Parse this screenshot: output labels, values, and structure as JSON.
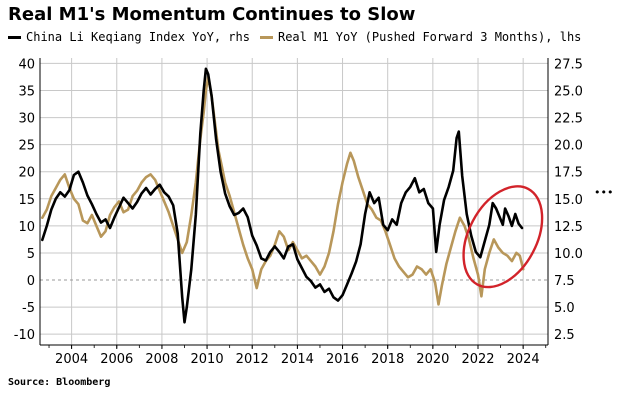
{
  "title": "Real M1's Momentum Continues to Slow",
  "source": "Source: Bloomberg",
  "colors": {
    "black_series": "#000000",
    "gold_series": "#b8975a",
    "highlight": "#d2232a",
    "grid": "#c8c8c8",
    "zero_line": "#9a9a9a"
  },
  "chart_data": {
    "type": "line",
    "legend_placement": "top",
    "grid": true,
    "x_ticks": [
      "2004",
      "2006",
      "2008",
      "2010",
      "2012",
      "2014",
      "2016",
      "2018",
      "2020",
      "2022",
      "2024"
    ],
    "xlim": [
      2002.6,
      2025.1
    ],
    "left_axis": {
      "ylim": [
        -12,
        41
      ],
      "ticks": [
        "40",
        "35",
        "30",
        "25",
        "20",
        "15",
        "10",
        "5",
        "0",
        "-5",
        "-10"
      ],
      "tick_values": [
        40,
        35,
        30,
        25,
        20,
        15,
        10,
        5,
        0,
        -5,
        -10
      ]
    },
    "right_axis": {
      "ylim": [
        1.5,
        28.0
      ],
      "ticks": [
        "27.5",
        "25.0",
        "22.5",
        "20.0",
        "17.5",
        "15.0",
        "12.5",
        "10.0",
        "7.5",
        "5.0",
        "2.5"
      ],
      "tick_values": [
        27.5,
        25.0,
        22.5,
        20.0,
        17.5,
        15.0,
        12.5,
        10.0,
        7.5,
        5.0,
        2.5
      ]
    },
    "annotation": {
      "type": "ellipse",
      "label": "•••",
      "x_range": [
        2021.6,
        2024.6
      ],
      "y_range_left": [
        -2,
        18
      ]
    },
    "series": [
      {
        "name": "China Li Keqiang Index YoY, rhs",
        "axis": "right",
        "color": "#000000",
        "points": [
          [
            2002.7,
            11.2
          ],
          [
            2002.9,
            12.5
          ],
          [
            2003.1,
            14.0
          ],
          [
            2003.3,
            15.0
          ],
          [
            2003.5,
            15.6
          ],
          [
            2003.7,
            15.2
          ],
          [
            2003.9,
            15.8
          ],
          [
            2004.1,
            17.2
          ],
          [
            2004.3,
            17.5
          ],
          [
            2004.5,
            16.5
          ],
          [
            2004.7,
            15.3
          ],
          [
            2004.9,
            14.5
          ],
          [
            2005.1,
            13.6
          ],
          [
            2005.3,
            12.8
          ],
          [
            2005.5,
            13.1
          ],
          [
            2005.7,
            12.3
          ],
          [
            2005.9,
            13.3
          ],
          [
            2006.1,
            14.2
          ],
          [
            2006.3,
            15.1
          ],
          [
            2006.5,
            14.6
          ],
          [
            2006.7,
            14.1
          ],
          [
            2006.9,
            14.7
          ],
          [
            2007.1,
            15.5
          ],
          [
            2007.3,
            16.0
          ],
          [
            2007.5,
            15.4
          ],
          [
            2007.7,
            15.9
          ],
          [
            2007.9,
            16.3
          ],
          [
            2008.1,
            15.6
          ],
          [
            2008.3,
            15.2
          ],
          [
            2008.5,
            14.4
          ],
          [
            2008.7,
            11.8
          ],
          [
            2008.9,
            5.9
          ],
          [
            2009.0,
            3.6
          ],
          [
            2009.1,
            5.0
          ],
          [
            2009.3,
            8.5
          ],
          [
            2009.5,
            13.5
          ],
          [
            2009.7,
            21.0
          ],
          [
            2009.85,
            25.0
          ],
          [
            2009.95,
            27.0
          ],
          [
            2010.05,
            26.5
          ],
          [
            2010.2,
            24.5
          ],
          [
            2010.4,
            20.5
          ],
          [
            2010.6,
            17.5
          ],
          [
            2010.8,
            15.5
          ],
          [
            2011.0,
            14.3
          ],
          [
            2011.2,
            13.5
          ],
          [
            2011.4,
            13.7
          ],
          [
            2011.6,
            14.1
          ],
          [
            2011.8,
            13.3
          ],
          [
            2012.0,
            11.6
          ],
          [
            2012.2,
            10.7
          ],
          [
            2012.4,
            9.5
          ],
          [
            2012.6,
            9.3
          ],
          [
            2012.8,
            10.1
          ],
          [
            2013.0,
            10.6
          ],
          [
            2013.2,
            10.1
          ],
          [
            2013.4,
            9.5
          ],
          [
            2013.6,
            10.6
          ],
          [
            2013.8,
            10.8
          ],
          [
            2014.0,
            9.4
          ],
          [
            2014.2,
            8.6
          ],
          [
            2014.4,
            7.8
          ],
          [
            2014.6,
            7.4
          ],
          [
            2014.8,
            6.8
          ],
          [
            2015.0,
            7.1
          ],
          [
            2015.2,
            6.4
          ],
          [
            2015.4,
            6.7
          ],
          [
            2015.6,
            5.9
          ],
          [
            2015.8,
            5.6
          ],
          [
            2016.0,
            6.1
          ],
          [
            2016.2,
            7.1
          ],
          [
            2016.4,
            8.1
          ],
          [
            2016.6,
            9.2
          ],
          [
            2016.8,
            10.8
          ],
          [
            2017.0,
            13.6
          ],
          [
            2017.2,
            15.6
          ],
          [
            2017.4,
            14.6
          ],
          [
            2017.6,
            15.1
          ],
          [
            2017.8,
            12.6
          ],
          [
            2018.0,
            12.1
          ],
          [
            2018.2,
            13.1
          ],
          [
            2018.4,
            12.6
          ],
          [
            2018.6,
            14.6
          ],
          [
            2018.8,
            15.6
          ],
          [
            2019.0,
            16.1
          ],
          [
            2019.2,
            16.9
          ],
          [
            2019.4,
            15.6
          ],
          [
            2019.6,
            15.9
          ],
          [
            2019.8,
            14.6
          ],
          [
            2020.0,
            14.1
          ],
          [
            2020.15,
            10.1
          ],
          [
            2020.3,
            12.6
          ],
          [
            2020.5,
            14.9
          ],
          [
            2020.7,
            16.1
          ],
          [
            2020.9,
            17.6
          ],
          [
            2021.05,
            20.6
          ],
          [
            2021.15,
            21.2
          ],
          [
            2021.3,
            17.1
          ],
          [
            2021.5,
            13.6
          ],
          [
            2021.7,
            11.6
          ],
          [
            2021.9,
            10.1
          ],
          [
            2022.1,
            9.6
          ],
          [
            2022.3,
            11.1
          ],
          [
            2022.5,
            12.6
          ],
          [
            2022.65,
            14.6
          ],
          [
            2022.8,
            14.1
          ],
          [
            2023.0,
            13.1
          ],
          [
            2023.1,
            12.6
          ],
          [
            2023.2,
            14.1
          ],
          [
            2023.35,
            13.4
          ],
          [
            2023.5,
            12.5
          ],
          [
            2023.65,
            13.6
          ],
          [
            2023.8,
            12.7
          ],
          [
            2023.95,
            12.3
          ]
        ]
      },
      {
        "name": "Real M1 YoY (Pushed Forward 3 Months), lhs",
        "axis": "left",
        "color": "#b8975a",
        "points": [
          [
            2002.7,
            11.5
          ],
          [
            2002.9,
            13.0
          ],
          [
            2003.1,
            15.5
          ],
          [
            2003.3,
            17.0
          ],
          [
            2003.5,
            18.5
          ],
          [
            2003.7,
            19.5
          ],
          [
            2003.9,
            17.0
          ],
          [
            2004.1,
            15.0
          ],
          [
            2004.3,
            14.0
          ],
          [
            2004.5,
            11.0
          ],
          [
            2004.7,
            10.5
          ],
          [
            2004.9,
            12.0
          ],
          [
            2005.1,
            10.0
          ],
          [
            2005.3,
            8.0
          ],
          [
            2005.5,
            9.0
          ],
          [
            2005.7,
            12.0
          ],
          [
            2005.9,
            13.5
          ],
          [
            2006.1,
            14.5
          ],
          [
            2006.3,
            12.5
          ],
          [
            2006.5,
            13.0
          ],
          [
            2006.7,
            15.5
          ],
          [
            2006.9,
            16.5
          ],
          [
            2007.1,
            18.0
          ],
          [
            2007.3,
            19.0
          ],
          [
            2007.5,
            19.5
          ],
          [
            2007.7,
            18.5
          ],
          [
            2007.9,
            16.5
          ],
          [
            2008.1,
            14.5
          ],
          [
            2008.3,
            12.5
          ],
          [
            2008.5,
            10.0
          ],
          [
            2008.7,
            7.5
          ],
          [
            2008.9,
            5.0
          ],
          [
            2009.1,
            7.0
          ],
          [
            2009.3,
            12.0
          ],
          [
            2009.5,
            18.0
          ],
          [
            2009.7,
            26.0
          ],
          [
            2009.85,
            31.0
          ],
          [
            2009.95,
            35.0
          ],
          [
            2010.05,
            37.5
          ],
          [
            2010.2,
            34.0
          ],
          [
            2010.35,
            29.0
          ],
          [
            2010.5,
            24.0
          ],
          [
            2010.65,
            21.0
          ],
          [
            2010.8,
            18.0
          ],
          [
            2011.0,
            15.5
          ],
          [
            2011.2,
            12.5
          ],
          [
            2011.4,
            9.5
          ],
          [
            2011.6,
            6.5
          ],
          [
            2011.8,
            4.0
          ],
          [
            2012.0,
            2.0
          ],
          [
            2012.2,
            -1.5
          ],
          [
            2012.4,
            2.0
          ],
          [
            2012.6,
            3.5
          ],
          [
            2012.8,
            4.5
          ],
          [
            2013.0,
            6.5
          ],
          [
            2013.2,
            9.0
          ],
          [
            2013.4,
            8.0
          ],
          [
            2013.6,
            5.5
          ],
          [
            2013.8,
            7.0
          ],
          [
            2014.0,
            5.5
          ],
          [
            2014.2,
            4.0
          ],
          [
            2014.4,
            4.5
          ],
          [
            2014.6,
            3.5
          ],
          [
            2014.8,
            2.5
          ],
          [
            2015.0,
            1.0
          ],
          [
            2015.2,
            2.5
          ],
          [
            2015.4,
            5.0
          ],
          [
            2015.6,
            9.0
          ],
          [
            2015.8,
            14.0
          ],
          [
            2016.0,
            18.0
          ],
          [
            2016.2,
            21.5
          ],
          [
            2016.35,
            23.5
          ],
          [
            2016.5,
            22.0
          ],
          [
            2016.7,
            19.0
          ],
          [
            2016.9,
            16.5
          ],
          [
            2017.1,
            14.0
          ],
          [
            2017.3,
            13.0
          ],
          [
            2017.5,
            11.5
          ],
          [
            2017.7,
            11.0
          ],
          [
            2017.9,
            9.0
          ],
          [
            2018.1,
            6.5
          ],
          [
            2018.3,
            4.0
          ],
          [
            2018.5,
            2.5
          ],
          [
            2018.7,
            1.5
          ],
          [
            2018.9,
            0.5
          ],
          [
            2019.1,
            1.0
          ],
          [
            2019.3,
            2.5
          ],
          [
            2019.5,
            2.0
          ],
          [
            2019.7,
            1.0
          ],
          [
            2019.9,
            2.0
          ],
          [
            2020.1,
            -0.5
          ],
          [
            2020.25,
            -4.5
          ],
          [
            2020.4,
            -1.0
          ],
          [
            2020.6,
            3.0
          ],
          [
            2020.8,
            6.0
          ],
          [
            2021.0,
            9.0
          ],
          [
            2021.2,
            11.5
          ],
          [
            2021.4,
            10.0
          ],
          [
            2021.6,
            7.5
          ],
          [
            2021.8,
            4.0
          ],
          [
            2022.0,
            1.0
          ],
          [
            2022.15,
            -3.0
          ],
          [
            2022.3,
            2.0
          ],
          [
            2022.5,
            5.0
          ],
          [
            2022.7,
            7.5
          ],
          [
            2022.9,
            6.0
          ],
          [
            2023.1,
            5.0
          ],
          [
            2023.3,
            4.5
          ],
          [
            2023.5,
            3.5
          ],
          [
            2023.7,
            5.0
          ],
          [
            2023.85,
            4.5
          ],
          [
            2024.0,
            2.0
          ]
        ]
      }
    ]
  }
}
